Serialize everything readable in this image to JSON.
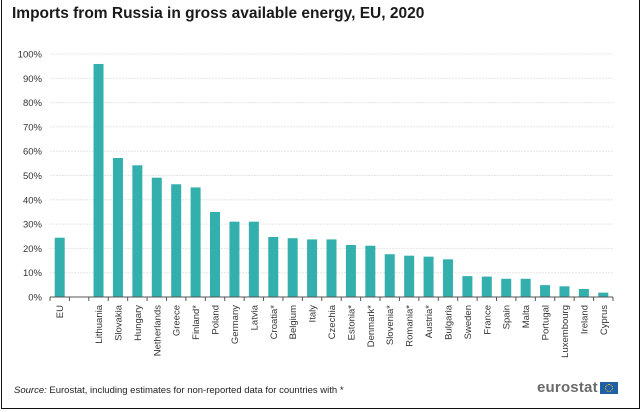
{
  "title": "Imports from Russia in gross available energy, EU, 2020",
  "source": {
    "prefix": "Source:",
    "text": " Eurostat, including estimates for non-reported data for countries with *"
  },
  "logo": {
    "text": "eurostat",
    "icon": "eu-flag-icon"
  },
  "colors": {
    "bar": "#33b0ae",
    "grid": "#e6e6e6",
    "axis": "#555555"
  },
  "chart_data": {
    "type": "bar",
    "title": "Imports from Russia in gross available energy, EU, 2020",
    "xlabel": "",
    "ylabel": "",
    "ylim": [
      0,
      100
    ],
    "y_ticks": [
      0,
      10,
      20,
      30,
      40,
      50,
      60,
      70,
      80,
      90,
      100
    ],
    "y_tick_format": "percent",
    "grid": true,
    "legend": "none",
    "categories": [
      "EU",
      "",
      "Lithuania",
      "Slovakia",
      "Hungary",
      "Netherlands",
      "Greece",
      "Finland*",
      "Poland",
      "Germany",
      "Latvia",
      "Croatia*",
      "Belgium",
      "Italy",
      "Czechia",
      "Estonia*",
      "Denmark*",
      "Slovenia*",
      "Romania*",
      "Austria*",
      "Bulgaria",
      "Sweden",
      "France",
      "Spain",
      "Malta",
      "Portugal",
      "Luxembourg",
      "Ireland",
      "Cyprus"
    ],
    "values": [
      24.4,
      null,
      95.9,
      57.2,
      54.2,
      49.1,
      46.4,
      45.1,
      35.0,
      31.0,
      31.0,
      24.7,
      24.2,
      23.7,
      23.7,
      21.4,
      21.1,
      17.6,
      17.0,
      16.6,
      15.5,
      8.6,
      8.4,
      7.5,
      7.5,
      4.9,
      4.4,
      3.3,
      1.8
    ]
  }
}
